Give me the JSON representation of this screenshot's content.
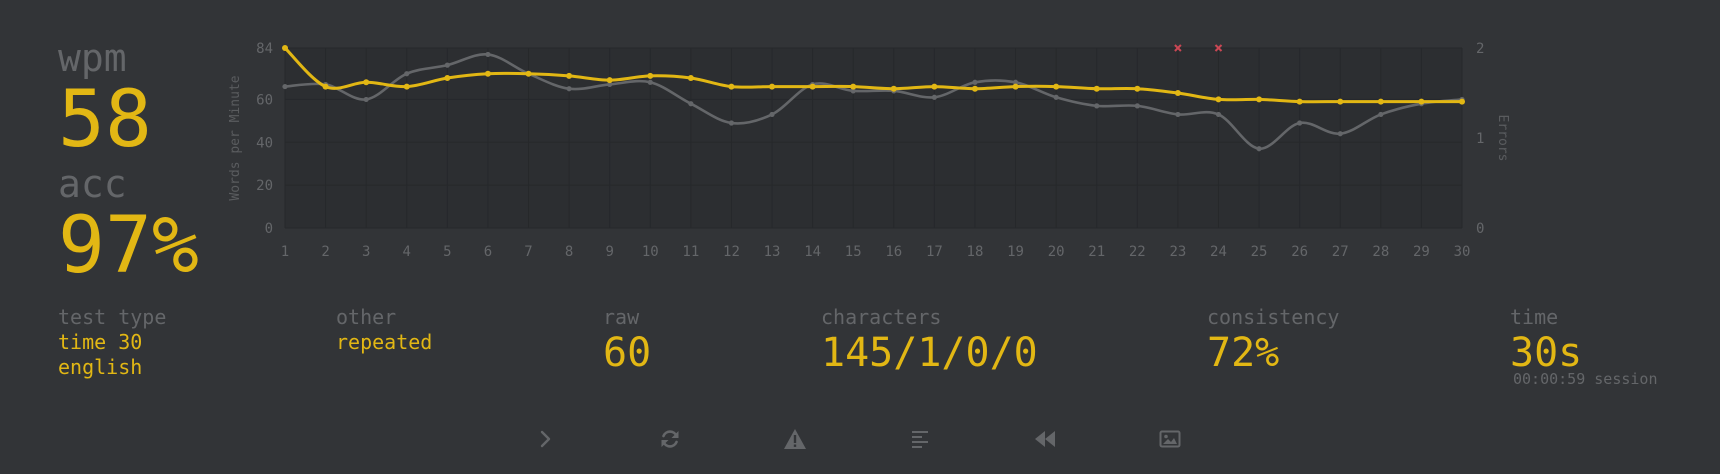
{
  "stats": {
    "wpm_label": "wpm",
    "wpm_value": "58",
    "acc_label": "acc",
    "acc_value": "97%"
  },
  "details": {
    "test_type_label": "test type",
    "test_type_mode": "time 30",
    "test_type_language": "english",
    "other_label": "other",
    "other_value": "repeated",
    "raw_label": "raw",
    "raw_value": "60",
    "characters_label": "characters",
    "characters_value": "145/1/0/0",
    "consistency_label": "consistency",
    "consistency_value": "72%",
    "time_label": "time",
    "time_value": "30s",
    "session_text": "00:00:59 session"
  },
  "toolbar": {
    "buttons": [
      {
        "name": "next-test-button",
        "icon": "chevron-right-icon"
      },
      {
        "name": "restart-test-button",
        "icon": "refresh-icon"
      },
      {
        "name": "practice-missed-words-button",
        "icon": "warning-icon"
      },
      {
        "name": "toggle-word-history-button",
        "icon": "align-left-icon"
      },
      {
        "name": "watch-replay-button",
        "icon": "backward-icon"
      },
      {
        "name": "save-screenshot-button",
        "icon": "image-icon"
      }
    ]
  },
  "colors": {
    "background": "#323437",
    "chart_bg": "#2c2e31",
    "accent": "#e2b714",
    "sub": "#646669",
    "raw_line": "#646669",
    "error": "#ca4754"
  },
  "chart_data": {
    "type": "line",
    "x": [
      1,
      2,
      3,
      4,
      5,
      6,
      7,
      8,
      9,
      10,
      11,
      12,
      13,
      14,
      15,
      16,
      17,
      18,
      19,
      20,
      21,
      22,
      23,
      24,
      25,
      26,
      27,
      28,
      29,
      30
    ],
    "xlim": [
      1,
      30
    ],
    "ylim": [
      0,
      84
    ],
    "y_ticks": [
      0,
      20,
      40,
      60,
      84
    ],
    "ylabel": "Words per Minute",
    "y2label": "Errors",
    "y2lim": [
      0,
      2
    ],
    "y2_ticks": [
      0,
      1,
      2
    ],
    "grid": true,
    "series": [
      {
        "name": "",
        "axis": "left",
        "style": "raw",
        "values": [
          66,
          67,
          60,
          72,
          76,
          81,
          72,
          65,
          67,
          68,
          58,
          49,
          53,
          67,
          64,
          64,
          61,
          68,
          68,
          61,
          57,
          57,
          53,
          53,
          37,
          49,
          44,
          53,
          58,
          60
        ]
      },
      {
        "name": "",
        "axis": "left",
        "style": "wpm",
        "values": [
          84,
          66,
          68,
          66,
          70,
          72,
          72,
          71,
          69,
          71,
          70,
          66,
          66,
          66,
          66,
          65,
          66,
          65,
          66,
          66,
          65,
          65,
          63,
          60,
          60,
          59,
          59,
          59,
          59,
          59
        ]
      }
    ],
    "errors": [
      {
        "x": 23,
        "count": 1
      },
      {
        "x": 24,
        "count": 1
      }
    ]
  }
}
